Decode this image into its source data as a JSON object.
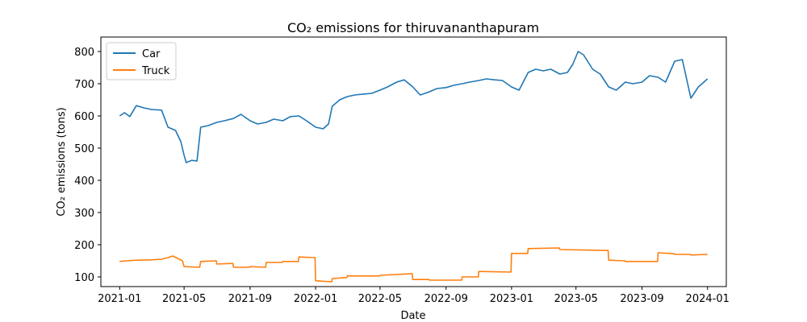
{
  "chart_data": {
    "type": "line",
    "title": "CO₂ emissions for thiruvananthapuram",
    "xlabel": "Date",
    "ylabel": "CO₂ emissions (tons)",
    "xlim": [
      "2020-11-27",
      "2024-02-05"
    ],
    "ylim": [
      70,
      845
    ],
    "grid": false,
    "legend_position": "top-left",
    "x_ticks": [
      "2021-01",
      "2021-05",
      "2021-09",
      "2022-01",
      "2022-05",
      "2022-09",
      "2023-01",
      "2023-05",
      "2023-09",
      "2024-01"
    ],
    "y_ticks": [
      100,
      200,
      300,
      400,
      500,
      600,
      700,
      800
    ],
    "series": [
      {
        "name": "Car",
        "color": "#1f77b4",
        "points": [
          [
            "2021-01-01",
            600
          ],
          [
            "2021-01-10",
            610
          ],
          [
            "2021-01-20",
            598
          ],
          [
            "2021-02-01",
            632
          ],
          [
            "2021-02-15",
            625
          ],
          [
            "2021-03-01",
            620
          ],
          [
            "2021-03-20",
            618
          ],
          [
            "2021-04-01",
            565
          ],
          [
            "2021-04-15",
            555
          ],
          [
            "2021-04-25",
            520
          ],
          [
            "2021-05-01",
            478
          ],
          [
            "2021-05-05",
            455
          ],
          [
            "2021-05-15",
            462
          ],
          [
            "2021-05-25",
            460
          ],
          [
            "2021-06-01",
            565
          ],
          [
            "2021-06-15",
            570
          ],
          [
            "2021-07-01",
            580
          ],
          [
            "2021-07-15",
            585
          ],
          [
            "2021-08-01",
            592
          ],
          [
            "2021-08-15",
            605
          ],
          [
            "2021-09-01",
            585
          ],
          [
            "2021-09-15",
            575
          ],
          [
            "2021-10-01",
            580
          ],
          [
            "2021-10-15",
            590
          ],
          [
            "2021-11-01",
            585
          ],
          [
            "2021-11-15",
            598
          ],
          [
            "2021-12-01",
            600
          ],
          [
            "2021-12-15",
            585
          ],
          [
            "2022-01-01",
            565
          ],
          [
            "2022-01-15",
            560
          ],
          [
            "2022-01-25",
            575
          ],
          [
            "2022-02-01",
            630
          ],
          [
            "2022-02-15",
            650
          ],
          [
            "2022-03-01",
            660
          ],
          [
            "2022-03-15",
            665
          ],
          [
            "2022-04-01",
            668
          ],
          [
            "2022-04-15",
            670
          ],
          [
            "2022-05-01",
            680
          ],
          [
            "2022-05-15",
            690
          ],
          [
            "2022-06-01",
            705
          ],
          [
            "2022-06-15",
            712
          ],
          [
            "2022-07-01",
            690
          ],
          [
            "2022-07-15",
            665
          ],
          [
            "2022-08-01",
            675
          ],
          [
            "2022-08-15",
            685
          ],
          [
            "2022-09-01",
            688
          ],
          [
            "2022-09-15",
            695
          ],
          [
            "2022-10-01",
            700
          ],
          [
            "2022-10-15",
            705
          ],
          [
            "2022-11-01",
            710
          ],
          [
            "2022-11-15",
            715
          ],
          [
            "2022-12-01",
            712
          ],
          [
            "2022-12-15",
            710
          ],
          [
            "2023-01-01",
            690
          ],
          [
            "2023-01-15",
            680
          ],
          [
            "2023-02-01",
            735
          ],
          [
            "2023-02-15",
            745
          ],
          [
            "2023-03-01",
            740
          ],
          [
            "2023-03-15",
            745
          ],
          [
            "2023-04-01",
            730
          ],
          [
            "2023-04-15",
            735
          ],
          [
            "2023-04-25",
            760
          ],
          [
            "2023-05-05",
            800
          ],
          [
            "2023-05-15",
            790
          ],
          [
            "2023-06-01",
            745
          ],
          [
            "2023-06-15",
            730
          ],
          [
            "2023-07-01",
            690
          ],
          [
            "2023-07-15",
            680
          ],
          [
            "2023-08-01",
            705
          ],
          [
            "2023-08-15",
            700
          ],
          [
            "2023-09-01",
            705
          ],
          [
            "2023-09-15",
            725
          ],
          [
            "2023-10-01",
            720
          ],
          [
            "2023-10-15",
            705
          ],
          [
            "2023-11-01",
            770
          ],
          [
            "2023-11-15",
            775
          ],
          [
            "2023-12-01",
            655
          ],
          [
            "2023-12-15",
            690
          ],
          [
            "2024-01-01",
            715
          ]
        ]
      },
      {
        "name": "Truck",
        "color": "#ff7f0e",
        "points": [
          [
            "2021-01-01",
            148
          ],
          [
            "2021-01-15",
            150
          ],
          [
            "2021-02-01",
            152
          ],
          [
            "2021-03-01",
            153
          ],
          [
            "2021-03-20",
            155
          ],
          [
            "2021-04-01",
            160
          ],
          [
            "2021-04-10",
            165
          ],
          [
            "2021-04-28",
            150
          ],
          [
            "2021-05-01",
            132
          ],
          [
            "2021-05-30",
            130
          ],
          [
            "2021-06-01",
            148
          ],
          [
            "2021-06-30",
            150
          ],
          [
            "2021-07-01",
            140
          ],
          [
            "2021-07-31",
            142
          ],
          [
            "2021-08-01",
            130
          ],
          [
            "2021-08-31",
            130
          ],
          [
            "2021-09-01",
            132
          ],
          [
            "2021-09-30",
            130
          ],
          [
            "2021-10-01",
            145
          ],
          [
            "2021-10-31",
            145
          ],
          [
            "2021-11-01",
            148
          ],
          [
            "2021-11-30",
            148
          ],
          [
            "2021-12-01",
            162
          ],
          [
            "2021-12-31",
            160
          ],
          [
            "2022-01-01",
            88
          ],
          [
            "2022-01-31",
            85
          ],
          [
            "2022-02-01",
            95
          ],
          [
            "2022-02-28",
            98
          ],
          [
            "2022-03-01",
            103
          ],
          [
            "2022-04-30",
            103
          ],
          [
            "2022-05-01",
            105
          ],
          [
            "2022-06-30",
            110
          ],
          [
            "2022-07-01",
            92
          ],
          [
            "2022-07-31",
            92
          ],
          [
            "2022-08-01",
            90
          ],
          [
            "2022-09-30",
            90
          ],
          [
            "2022-10-01",
            100
          ],
          [
            "2022-10-31",
            100
          ],
          [
            "2022-11-01",
            117
          ],
          [
            "2022-12-31",
            115
          ],
          [
            "2023-01-01",
            173
          ],
          [
            "2023-01-31",
            173
          ],
          [
            "2023-02-01",
            188
          ],
          [
            "2023-03-31",
            190
          ],
          [
            "2023-04-01",
            185
          ],
          [
            "2023-06-30",
            182
          ],
          [
            "2023-07-01",
            152
          ],
          [
            "2023-07-31",
            150
          ],
          [
            "2023-08-01",
            148
          ],
          [
            "2023-09-30",
            148
          ],
          [
            "2023-10-01",
            175
          ],
          [
            "2023-10-31",
            172
          ],
          [
            "2023-11-01",
            170
          ],
          [
            "2023-11-30",
            170
          ],
          [
            "2023-12-01",
            168
          ],
          [
            "2024-01-01",
            170
          ]
        ]
      }
    ]
  }
}
